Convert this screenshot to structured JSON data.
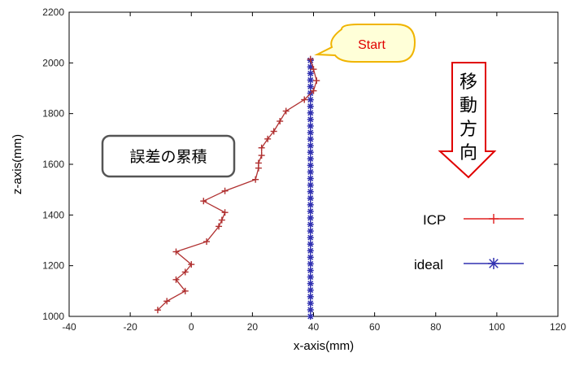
{
  "chart_data": {
    "type": "line",
    "title": "",
    "xlabel": "x-axis(mm)",
    "ylabel": "z-axis(mm)",
    "xlim": [
      -40,
      120
    ],
    "ylim": [
      1000,
      2200
    ],
    "xticks": [
      -40,
      -20,
      0,
      20,
      40,
      60,
      80,
      100,
      120
    ],
    "yticks": [
      1000,
      1200,
      1400,
      1600,
      1800,
      2000,
      2200
    ],
    "grid": false,
    "legend_position": "right",
    "series": [
      {
        "name": "ICP",
        "color": "#b03030",
        "marker": "+",
        "points": [
          [
            39,
            2015
          ],
          [
            40,
            1975
          ],
          [
            41,
            1930
          ],
          [
            40,
            1890
          ],
          [
            37,
            1855
          ],
          [
            31,
            1810
          ],
          [
            29,
            1770
          ],
          [
            27,
            1730
          ],
          [
            25,
            1700
          ],
          [
            23,
            1665
          ],
          [
            23,
            1635
          ],
          [
            22,
            1605
          ],
          [
            22,
            1585
          ],
          [
            21,
            1540
          ],
          [
            11,
            1495
          ],
          [
            4,
            1455
          ],
          [
            11,
            1410
          ],
          [
            10,
            1380
          ],
          [
            9,
            1355
          ],
          [
            5,
            1295
          ],
          [
            -5,
            1255
          ],
          [
            0,
            1205
          ],
          [
            -2,
            1175
          ],
          [
            -5,
            1145
          ],
          [
            -2,
            1100
          ],
          [
            -8,
            1060
          ],
          [
            -11,
            1025
          ]
        ]
      },
      {
        "name": "ideal",
        "color": "#3030b0",
        "marker": "*",
        "x_constant": 39,
        "y_from": 1000,
        "y_to": 2010,
        "count": 40
      }
    ]
  },
  "annotations": {
    "callout": "Start",
    "note": "誤差の累積",
    "direction_chars": [
      "移",
      "動",
      "方",
      "向"
    ]
  },
  "colors": {
    "icp_line": "#b03030",
    "icp_legend": "#e02020",
    "ideal": "#3030b0",
    "callout_fill": "#ffffd8",
    "callout_stroke": "#f0b400",
    "callout_text": "#e00000",
    "arrow_stroke": "#e00000",
    "note_stroke": "#555555"
  }
}
